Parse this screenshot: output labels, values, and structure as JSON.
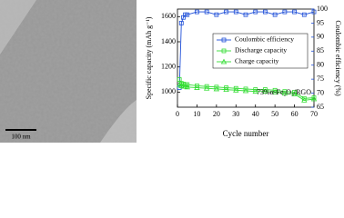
{
  "micrograph": {
    "scale_label": "100 nm"
  },
  "chart_data": {
    "type": "line",
    "xlabel": "Cycle number",
    "ylabel": "Specific capacity (mAh g⁻¹)",
    "y2label": "Coulombic efficiency (%)",
    "annotation": "73%α-Fe₂O₃/RGO",
    "x": [
      1,
      2,
      3,
      4,
      5,
      10,
      15,
      20,
      25,
      30,
      35,
      40,
      45,
      50,
      55,
      60,
      65,
      70
    ],
    "series": [
      {
        "name": "Coulombic efficiency",
        "color": "#1f4fd8",
        "marker": "square",
        "axis": "y2",
        "values": [
          72,
          95,
          97,
          98,
          98,
          99,
          99,
          98,
          99,
          99,
          98,
          99,
          99,
          98,
          99,
          99,
          98,
          99
        ]
      },
      {
        "name": "Discharge capacity",
        "color": "#33dd33",
        "marker": "square",
        "values": [
          1100,
          1070,
          1065,
          1060,
          1060,
          1050,
          1045,
          1040,
          1035,
          1030,
          1025,
          1020,
          1020,
          1015,
          1005,
          1000,
          950,
          955
        ]
      },
      {
        "name": "Charge capacity",
        "color": "#33dd33",
        "marker": "triangle",
        "values": [
          1060,
          1050,
          1045,
          1045,
          1040,
          1035,
          1030,
          1025,
          1020,
          1015,
          1010,
          1005,
          1005,
          1000,
          990,
          985,
          935,
          945
        ]
      }
    ],
    "xlim": [
      0,
      70
    ],
    "xticks": [
      0,
      10,
      20,
      30,
      40,
      50,
      60,
      70
    ],
    "ylim": [
      880,
      1660
    ],
    "yticks": [
      1000,
      1200,
      1400,
      1600
    ],
    "y2lim": [
      65,
      100
    ],
    "y2ticks": [
      65,
      70,
      75,
      80,
      85,
      90,
      95,
      100
    ],
    "axis_color": "#1f4fd8",
    "legend": "upper center"
  }
}
